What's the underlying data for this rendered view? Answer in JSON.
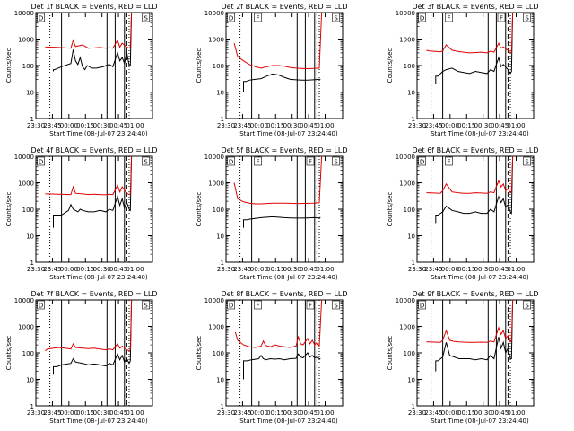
{
  "chart_data": {
    "type": "line",
    "xlabel": "Start Time (08-Jul-07 23:24:40)",
    "ylabel": "Counts/sec",
    "y_scale": "log",
    "ylim": [
      1,
      10000
    ],
    "y_ticks": [
      1,
      10,
      100,
      1000,
      10000
    ],
    "y_tick_labels": [
      "1",
      "10",
      "100",
      "1000",
      "10000"
    ],
    "x_tick_labels": [
      "23:30",
      "23:45",
      "00:00",
      "00:15",
      "00:30",
      "00:45",
      "01:00"
    ],
    "series_colors": {
      "events": "#000000",
      "lld": "#e00000"
    },
    "panels": [
      {
        "title": "Det 1f BLACK = Events, RED = LLD",
        "markers": [
          "D",
          "S"
        ],
        "series": [
          {
            "key": "events",
            "x": [
              0.15,
              0.15,
              0.16,
              0.22,
              0.3,
              0.32,
              0.34,
              0.36,
              0.38,
              0.4,
              0.42,
              0.44,
              0.48,
              0.52,
              0.58,
              0.6,
              0.63,
              0.66,
              0.7,
              0.72,
              0.74,
              0.76,
              0.78,
              0.8,
              0.81,
              0.82
            ],
            "y": [
              60,
              70,
              70,
              90,
              120,
              400,
              150,
              110,
              200,
              90,
              70,
              100,
              80,
              80,
              90,
              100,
              110,
              90,
              300,
              150,
              200,
              120,
              300,
              100,
              100,
              10000
            ]
          },
          {
            "key": "lld",
            "x": [
              0.08,
              0.1,
              0.2,
              0.3,
              0.32,
              0.34,
              0.4,
              0.45,
              0.5,
              0.55,
              0.6,
              0.63,
              0.66,
              0.7,
              0.72,
              0.74,
              0.78,
              0.8,
              0.81,
              0.82
            ],
            "y": [
              500,
              500,
              480,
              450,
              900,
              520,
              600,
              450,
              460,
              480,
              450,
              470,
              450,
              900,
              500,
              700,
              500,
              450,
              500,
              10000
            ]
          }
        ]
      },
      {
        "title": "Det 2f BLACK = Events, RED = LLD",
        "markers": [
          "D",
          "F",
          "S"
        ],
        "series": [
          {
            "key": "events",
            "x": [
              0.15,
              0.15,
              0.17,
              0.2,
              0.25,
              0.3,
              0.35,
              0.4,
              0.45,
              0.5,
              0.55,
              0.6,
              0.65,
              0.7,
              0.75,
              0.8,
              0.81
            ],
            "y": [
              10,
              25,
              25,
              28,
              30,
              32,
              40,
              48,
              44,
              36,
              30,
              29,
              28,
              28,
              29,
              30,
              30
            ]
          },
          {
            "key": "lld",
            "x": [
              0.07,
              0.1,
              0.15,
              0.2,
              0.25,
              0.3,
              0.35,
              0.4,
              0.45,
              0.5,
              0.55,
              0.6,
              0.65,
              0.7,
              0.75,
              0.8,
              0.82
            ],
            "y": [
              700,
              220,
              150,
              110,
              90,
              80,
              90,
              100,
              100,
              95,
              85,
              80,
              78,
              76,
              78,
              80,
              10000
            ]
          }
        ]
      },
      {
        "title": "Det 3f BLACK = Events, RED = LLD",
        "markers": [
          "D",
          "F",
          "F",
          "S"
        ],
        "series": [
          {
            "key": "events",
            "x": [
              0.16,
              0.16,
              0.18,
              0.22,
              0.25,
              0.3,
              0.35,
              0.4,
              0.45,
              0.5,
              0.55,
              0.6,
              0.63,
              0.66,
              0.7,
              0.72,
              0.74,
              0.78,
              0.8,
              0.81,
              0.82
            ],
            "y": [
              20,
              40,
              40,
              60,
              70,
              80,
              60,
              55,
              50,
              60,
              55,
              50,
              70,
              60,
              200,
              90,
              110,
              70,
              50,
              60,
              10000
            ]
          },
          {
            "key": "lld",
            "x": [
              0.08,
              0.1,
              0.2,
              0.22,
              0.25,
              0.3,
              0.35,
              0.4,
              0.45,
              0.5,
              0.55,
              0.6,
              0.63,
              0.66,
              0.7,
              0.72,
              0.74,
              0.78,
              0.8,
              0.81,
              0.82
            ],
            "y": [
              380,
              360,
              330,
              360,
              600,
              380,
              340,
              320,
              300,
              310,
              320,
              300,
              350,
              320,
              700,
              450,
              500,
              380,
              300,
              320,
              10000
            ]
          }
        ]
      },
      {
        "title": "Det 4f BLACK = Events, RED = LLD",
        "markers": [
          "D",
          "S"
        ],
        "series": [
          {
            "key": "events",
            "x": [
              0.15,
              0.15,
              0.18,
              0.22,
              0.28,
              0.3,
              0.32,
              0.34,
              0.36,
              0.38,
              0.4,
              0.45,
              0.5,
              0.55,
              0.6,
              0.63,
              0.66,
              0.7,
              0.72,
              0.74,
              0.76,
              0.78,
              0.8,
              0.81,
              0.82
            ],
            "y": [
              20,
              60,
              60,
              60,
              90,
              150,
              100,
              90,
              80,
              100,
              90,
              80,
              80,
              90,
              80,
              100,
              90,
              300,
              140,
              250,
              110,
              180,
              100,
              90,
              10000
            ]
          },
          {
            "key": "lld",
            "x": [
              0.08,
              0.1,
              0.2,
              0.3,
              0.32,
              0.34,
              0.4,
              0.45,
              0.5,
              0.55,
              0.6,
              0.63,
              0.66,
              0.7,
              0.72,
              0.74,
              0.78,
              0.8,
              0.81,
              0.82
            ],
            "y": [
              380,
              380,
              370,
              360,
              700,
              400,
              380,
              360,
              370,
              360,
              350,
              370,
              360,
              800,
              450,
              700,
              400,
              360,
              380,
              10000
            ]
          }
        ]
      },
      {
        "title": "Det 5f BLACK = Events, RED = LLD",
        "markers": [
          "D",
          "F",
          "F",
          "S"
        ],
        "series": [
          {
            "key": "events",
            "x": [
              0.15,
              0.15,
              0.18,
              0.2,
              0.25,
              0.3,
              0.35,
              0.4,
              0.45,
              0.5,
              0.55,
              0.6,
              0.65,
              0.7,
              0.75,
              0.8,
              0.81
            ],
            "y": [
              20,
              40,
              40,
              42,
              45,
              48,
              50,
              52,
              50,
              48,
              47,
              46,
              46,
              47,
              48,
              47,
              50
            ]
          },
          {
            "key": "lld",
            "x": [
              0.07,
              0.1,
              0.15,
              0.2,
              0.25,
              0.3,
              0.35,
              0.4,
              0.45,
              0.5,
              0.55,
              0.6,
              0.65,
              0.7,
              0.75,
              0.8,
              0.82
            ],
            "y": [
              1000,
              250,
              190,
              170,
              160,
              160,
              165,
              170,
              170,
              170,
              168,
              165,
              165,
              168,
              170,
              175,
              10000
            ]
          }
        ]
      },
      {
        "title": "Det 6f BLACK = Events, RED = LLD",
        "markers": [
          "D",
          "F",
          "S"
        ],
        "series": [
          {
            "key": "events",
            "x": [
              0.16,
              0.16,
              0.18,
              0.22,
              0.25,
              0.3,
              0.35,
              0.4,
              0.45,
              0.5,
              0.55,
              0.6,
              0.63,
              0.66,
              0.7,
              0.72,
              0.74,
              0.76,
              0.78,
              0.8,
              0.81,
              0.82
            ],
            "y": [
              30,
              60,
              60,
              80,
              130,
              90,
              80,
              70,
              70,
              80,
              70,
              70,
              100,
              80,
              300,
              180,
              250,
              120,
              150,
              80,
              70,
              10000
            ]
          },
          {
            "key": "lld",
            "x": [
              0.08,
              0.1,
              0.2,
              0.22,
              0.25,
              0.3,
              0.35,
              0.4,
              0.45,
              0.5,
              0.55,
              0.6,
              0.63,
              0.66,
              0.7,
              0.72,
              0.74,
              0.76,
              0.78,
              0.8,
              0.81,
              0.82
            ],
            "y": [
              420,
              420,
              400,
              500,
              900,
              450,
              420,
              400,
              400,
              420,
              410,
              400,
              450,
              420,
              1200,
              700,
              900,
              500,
              600,
              420,
              450,
              10000
            ]
          }
        ]
      },
      {
        "title": "Det 7f BLACK = Events, RED = LLD",
        "markers": [
          "D",
          "S"
        ],
        "series": [
          {
            "key": "events",
            "x": [
              0.15,
              0.15,
              0.18,
              0.22,
              0.3,
              0.32,
              0.34,
              0.4,
              0.45,
              0.5,
              0.55,
              0.6,
              0.63,
              0.66,
              0.7,
              0.72,
              0.74,
              0.76,
              0.78,
              0.8,
              0.81,
              0.82
            ],
            "y": [
              15,
              30,
              30,
              35,
              40,
              60,
              45,
              40,
              35,
              38,
              35,
              32,
              40,
              35,
              90,
              55,
              80,
              45,
              60,
              40,
              50,
              10000
            ]
          },
          {
            "key": "lld",
            "x": [
              0.08,
              0.1,
              0.15,
              0.2,
              0.25,
              0.3,
              0.32,
              0.34,
              0.4,
              0.45,
              0.5,
              0.55,
              0.6,
              0.63,
              0.66,
              0.7,
              0.72,
              0.74,
              0.78,
              0.8,
              0.81,
              0.82
            ],
            "y": [
              120,
              140,
              150,
              160,
              150,
              140,
              220,
              160,
              150,
              145,
              150,
              140,
              130,
              140,
              130,
              220,
              150,
              180,
              130,
              120,
              130,
              10000
            ]
          }
        ]
      },
      {
        "title": "Det 8f BLACK = Events, RED = LLD",
        "markers": [
          "D",
          "F",
          "F",
          "S"
        ],
        "series": [
          {
            "key": "events",
            "x": [
              0.15,
              0.15,
              0.18,
              0.22,
              0.28,
              0.3,
              0.32,
              0.34,
              0.38,
              0.42,
              0.46,
              0.5,
              0.55,
              0.6,
              0.62,
              0.64,
              0.66,
              0.7,
              0.72,
              0.74,
              0.76,
              0.78,
              0.8,
              0.81
            ],
            "y": [
              10,
              50,
              50,
              55,
              60,
              80,
              60,
              55,
              60,
              58,
              60,
              55,
              60,
              62,
              90,
              70,
              65,
              100,
              70,
              80,
              65,
              70,
              60,
              60
            ]
          },
          {
            "key": "lld",
            "x": [
              0.08,
              0.1,
              0.15,
              0.2,
              0.25,
              0.3,
              0.32,
              0.34,
              0.38,
              0.42,
              0.46,
              0.5,
              0.55,
              0.6,
              0.62,
              0.64,
              0.66,
              0.7,
              0.72,
              0.74,
              0.76,
              0.78,
              0.8,
              0.82
            ],
            "y": [
              600,
              300,
              200,
              170,
              160,
              180,
              280,
              190,
              170,
              200,
              180,
              170,
              160,
              180,
              400,
              220,
              200,
              350,
              220,
              300,
              200,
              250,
              180,
              10000
            ]
          }
        ]
      },
      {
        "title": "Det 9f BLACK = Events, RED = LLD",
        "markers": [
          "D",
          "S"
        ],
        "series": [
          {
            "key": "events",
            "x": [
              0.16,
              0.16,
              0.18,
              0.22,
              0.25,
              0.28,
              0.32,
              0.36,
              0.4,
              0.45,
              0.5,
              0.55,
              0.6,
              0.63,
              0.66,
              0.7,
              0.72,
              0.74,
              0.76,
              0.78,
              0.8,
              0.81,
              0.82
            ],
            "y": [
              20,
              50,
              50,
              70,
              250,
              80,
              70,
              60,
              60,
              60,
              55,
              60,
              55,
              80,
              60,
              400,
              150,
              250,
              100,
              150,
              60,
              60,
              10000
            ]
          },
          {
            "key": "lld",
            "x": [
              0.08,
              0.1,
              0.2,
              0.22,
              0.25,
              0.28,
              0.32,
              0.36,
              0.4,
              0.45,
              0.5,
              0.55,
              0.6,
              0.63,
              0.66,
              0.7,
              0.72,
              0.74,
              0.76,
              0.78,
              0.8,
              0.81,
              0.82
            ],
            "y": [
              260,
              260,
              250,
              300,
              700,
              300,
              270,
              260,
              255,
              250,
              250,
              255,
              250,
              280,
              260,
              900,
              500,
              700,
              350,
              450,
              260,
              280,
              10000
            ]
          }
        ]
      }
    ]
  }
}
